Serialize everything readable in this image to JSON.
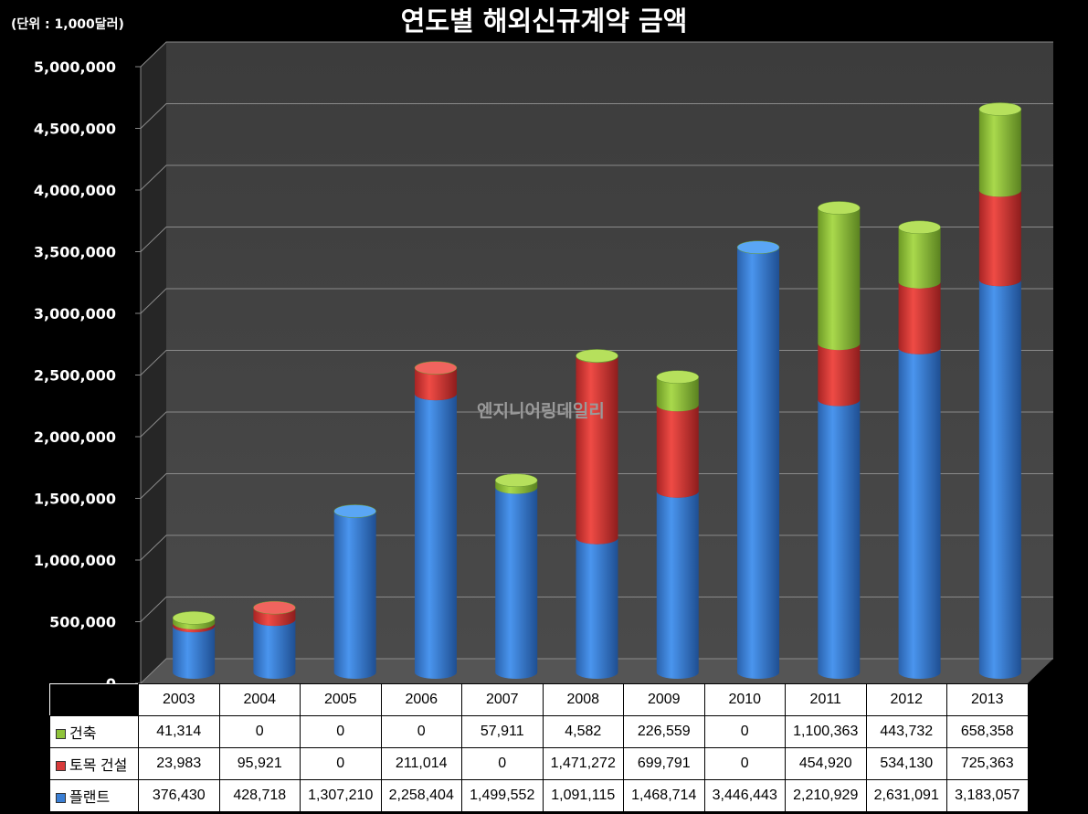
{
  "unit_label": "(단위 : 1,000달러)",
  "title": "연도별 해외신규계약 금액",
  "watermark": "엔지니어링데일리",
  "chart_data": {
    "type": "bar",
    "stacked": true,
    "title": "연도별 해외신규계약 금액",
    "categories": [
      "2003",
      "2004",
      "2005",
      "2006",
      "2007",
      "2008",
      "2009",
      "2010",
      "2011",
      "2012",
      "2013"
    ],
    "ylim": [
      0,
      5000000
    ],
    "yticks": [
      "0",
      "500,000",
      "1,000,000",
      "1,500,000",
      "2,000,000",
      "2,500,000",
      "3,000,000",
      "3,500,000",
      "4,000,000",
      "4,500,000",
      "5,000,000"
    ],
    "grid": true,
    "legend": "table",
    "series": [
      {
        "name": "플랜트",
        "color": "#3a7fd5",
        "values": [
          376430,
          428718,
          1307210,
          2258404,
          1499552,
          1091115,
          1468714,
          3446443,
          2210929,
          2631091,
          3183057
        ],
        "labels": [
          "376,430",
          "428,718",
          "1,307,210",
          "2,258,404",
          "1,499,552",
          "1,091,115",
          "1,468,714",
          "3,446,443",
          "2,210,929",
          "2,631,091",
          "3,183,057"
        ]
      },
      {
        "name": "토목 건설",
        "color": "#d83a3a",
        "values": [
          23983,
          95921,
          0,
          211014,
          0,
          1471272,
          699791,
          0,
          454920,
          534130,
          725363
        ],
        "labels": [
          "23,983",
          "95,921",
          "0",
          "211,014",
          "0",
          "1,471,272",
          "699,791",
          "0",
          "454,920",
          "534,130",
          "725,363"
        ]
      },
      {
        "name": "건축",
        "color": "#8fc33a",
        "values": [
          41314,
          0,
          0,
          0,
          57911,
          4582,
          226559,
          0,
          1100363,
          443732,
          658358
        ],
        "labels": [
          "41,314",
          "0",
          "0",
          "0",
          "57,911",
          "4,582",
          "226,559",
          "0",
          "1,100,363",
          "443,732",
          "658,358"
        ]
      }
    ]
  }
}
